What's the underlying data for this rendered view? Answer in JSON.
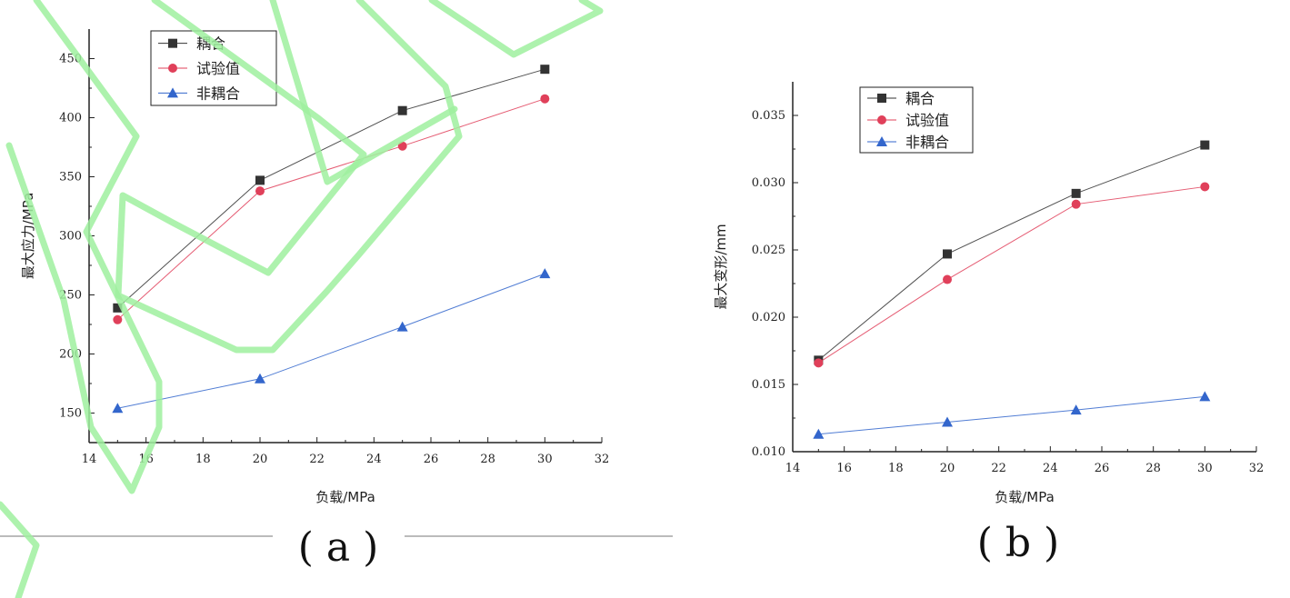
{
  "captions": [
    "( a )",
    "( b )"
  ],
  "colors": {
    "coupled": "#333333",
    "test": "#e0405a",
    "uncoupled": "#3366cc",
    "watermark": "#9ff09f"
  },
  "chart_data": [
    {
      "type": "line",
      "xlabel": "负载/MPa",
      "ylabel": "最大应力/MPa",
      "xlim": [
        14,
        32
      ],
      "ylim": [
        125,
        475
      ],
      "xticks": [
        14,
        16,
        18,
        20,
        22,
        24,
        26,
        28,
        30,
        32
      ],
      "yticks": [
        150,
        200,
        250,
        300,
        350,
        400,
        450
      ],
      "legend_position": "top-left",
      "x": [
        15,
        20,
        25,
        30
      ],
      "series": [
        {
          "name": "耦合",
          "marker": "square",
          "color": "#333333",
          "values": [
            239,
            347,
            406,
            441
          ]
        },
        {
          "name": "试验值",
          "marker": "circle",
          "color": "#e0405a",
          "values": [
            229,
            338,
            376,
            416
          ]
        },
        {
          "name": "非耦合",
          "marker": "triangle",
          "color": "#3366cc",
          "values": [
            154,
            179,
            223,
            268
          ]
        }
      ]
    },
    {
      "type": "line",
      "xlabel": "负载/MPa",
      "ylabel": "最大变形/mm",
      "xlim": [
        14,
        32
      ],
      "ylim": [
        0.01,
        0.0375
      ],
      "xticks": [
        14,
        16,
        18,
        20,
        22,
        24,
        26,
        28,
        30,
        32
      ],
      "yticks": [
        0.01,
        0.015,
        0.02,
        0.025,
        0.03,
        0.035
      ],
      "legend_position": "top-left",
      "x": [
        15,
        20,
        25,
        30
      ],
      "series": [
        {
          "name": "耦合",
          "marker": "square",
          "color": "#333333",
          "values": [
            0.0168,
            0.0247,
            0.0292,
            0.0328
          ]
        },
        {
          "name": "试验值",
          "marker": "circle",
          "color": "#e0405a",
          "values": [
            0.0166,
            0.0228,
            0.0284,
            0.0297
          ]
        },
        {
          "name": "非耦合",
          "marker": "triangle",
          "color": "#3366cc",
          "values": [
            0.0113,
            0.0122,
            0.0131,
            0.0141
          ]
        }
      ]
    }
  ]
}
